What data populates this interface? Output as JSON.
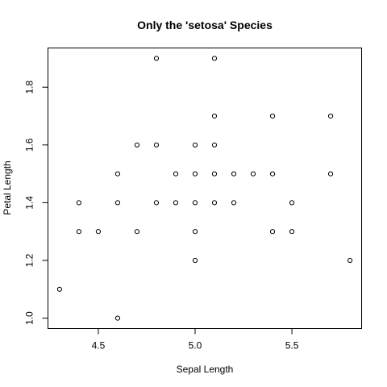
{
  "chart_data": {
    "type": "scatter",
    "title": "Only the 'setosa' Species",
    "xlabel": "Sepal Length",
    "ylabel": "Petal Length",
    "xlim": [
      4.3,
      5.8
    ],
    "ylim": [
      1.0,
      1.9
    ],
    "xticks": [
      4.5,
      5.0,
      5.5
    ],
    "xtick_labels": [
      "4.5",
      "5.0",
      "5.5"
    ],
    "yticks": [
      1.0,
      1.2,
      1.4,
      1.6,
      1.8
    ],
    "ytick_labels": [
      "1.0",
      "1.2",
      "1.4",
      "1.6",
      "1.8"
    ],
    "grid": false,
    "points": [
      {
        "x": 4.3,
        "y": 1.1
      },
      {
        "x": 4.4,
        "y": 1.3
      },
      {
        "x": 4.4,
        "y": 1.4
      },
      {
        "x": 4.5,
        "y": 1.3
      },
      {
        "x": 4.6,
        "y": 1.0
      },
      {
        "x": 4.6,
        "y": 1.4
      },
      {
        "x": 4.6,
        "y": 1.5
      },
      {
        "x": 4.7,
        "y": 1.3
      },
      {
        "x": 4.7,
        "y": 1.6
      },
      {
        "x": 4.8,
        "y": 1.4
      },
      {
        "x": 4.8,
        "y": 1.6
      },
      {
        "x": 4.8,
        "y": 1.9
      },
      {
        "x": 4.9,
        "y": 1.4
      },
      {
        "x": 4.9,
        "y": 1.5
      },
      {
        "x": 5.0,
        "y": 1.2
      },
      {
        "x": 5.0,
        "y": 1.3
      },
      {
        "x": 5.0,
        "y": 1.4
      },
      {
        "x": 5.0,
        "y": 1.5
      },
      {
        "x": 5.0,
        "y": 1.6
      },
      {
        "x": 5.1,
        "y": 1.4
      },
      {
        "x": 5.1,
        "y": 1.5
      },
      {
        "x": 5.1,
        "y": 1.6
      },
      {
        "x": 5.1,
        "y": 1.7
      },
      {
        "x": 5.1,
        "y": 1.9
      },
      {
        "x": 5.2,
        "y": 1.4
      },
      {
        "x": 5.2,
        "y": 1.5
      },
      {
        "x": 5.3,
        "y": 1.5
      },
      {
        "x": 5.4,
        "y": 1.3
      },
      {
        "x": 5.4,
        "y": 1.5
      },
      {
        "x": 5.4,
        "y": 1.7
      },
      {
        "x": 5.5,
        "y": 1.3
      },
      {
        "x": 5.5,
        "y": 1.4
      },
      {
        "x": 5.7,
        "y": 1.5
      },
      {
        "x": 5.7,
        "y": 1.7
      },
      {
        "x": 5.8,
        "y": 1.2
      }
    ]
  }
}
